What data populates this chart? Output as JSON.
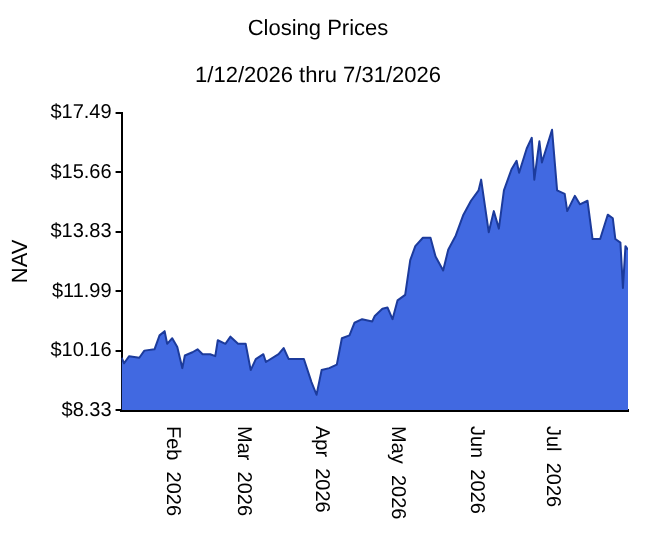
{
  "chart_data": {
    "type": "area",
    "title": "Closing Prices",
    "subtitle": "1/12/2026 thru 7/31/2026",
    "ylabel": "NAV",
    "x": [
      "2026-01-12",
      "2026-01-13",
      "2026-01-15",
      "2026-01-19",
      "2026-01-21",
      "2026-01-25",
      "2026-01-27",
      "2026-01-29",
      "2026-01-30",
      "2026-02-01",
      "2026-02-03",
      "2026-02-05",
      "2026-02-06",
      "2026-02-09",
      "2026-02-11",
      "2026-02-13",
      "2026-02-16",
      "2026-02-18",
      "2026-02-19",
      "2026-02-22",
      "2026-02-24",
      "2026-02-27",
      "2026-03-02",
      "2026-03-04",
      "2026-03-06",
      "2026-03-09",
      "2026-03-10",
      "2026-03-15",
      "2026-03-17",
      "2026-03-19",
      "2026-03-22",
      "2026-03-25",
      "2026-03-28",
      "2026-03-30",
      "2026-04-01",
      "2026-04-04",
      "2026-04-07",
      "2026-04-09",
      "2026-04-12",
      "2026-04-14",
      "2026-04-17",
      "2026-04-21",
      "2026-04-22",
      "2026-04-25",
      "2026-04-27",
      "2026-04-29",
      "2026-05-01",
      "2026-05-04",
      "2026-05-06",
      "2026-05-08",
      "2026-05-11",
      "2026-05-14",
      "2026-05-16",
      "2026-05-19",
      "2026-05-21",
      "2026-05-24",
      "2026-05-27",
      "2026-05-30",
      "2026-06-02",
      "2026-06-03",
      "2026-06-06",
      "2026-06-08",
      "2026-06-10",
      "2026-06-12",
      "2026-06-15",
      "2026-06-17",
      "2026-06-18",
      "2026-06-21",
      "2026-06-23",
      "2026-06-24",
      "2026-06-26",
      "2026-06-27",
      "2026-07-01",
      "2026-07-03",
      "2026-07-06",
      "2026-07-07",
      "2026-07-10",
      "2026-07-12",
      "2026-07-15",
      "2026-07-17",
      "2026-07-20",
      "2026-07-23",
      "2026-07-25",
      "2026-07-26",
      "2026-07-28",
      "2026-07-29",
      "2026-07-30",
      "2026-07-31"
    ],
    "series": [
      {
        "color": "#4169e1",
        "values": [
          9.94,
          9.77,
          9.99,
          9.94,
          10.16,
          10.2,
          10.63,
          10.76,
          10.37,
          10.54,
          10.27,
          9.62,
          10.01,
          10.11,
          10.2,
          10.05,
          10.05,
          9.99,
          10.48,
          10.37,
          10.59,
          10.37,
          10.37,
          9.56,
          9.9,
          10.05,
          9.81,
          10.05,
          10.24,
          9.9,
          9.9,
          9.9,
          9.19,
          8.8,
          9.56,
          9.62,
          9.73,
          10.54,
          10.63,
          11.02,
          11.13,
          11.06,
          11.23,
          11.45,
          11.49,
          11.13,
          11.71,
          11.88,
          12.95,
          13.38,
          13.64,
          13.64,
          13.06,
          12.63,
          13.27,
          13.71,
          14.35,
          14.78,
          15.1,
          15.43,
          13.81,
          14.46,
          13.92,
          15.1,
          15.75,
          16.01,
          15.64,
          16.39,
          16.72,
          15.43,
          16.61,
          15.96,
          16.97,
          15.1,
          14.99,
          14.46,
          14.93,
          14.67,
          14.78,
          13.6,
          13.6,
          14.35,
          14.24,
          13.6,
          13.49,
          12.09,
          13.38,
          13.27
        ]
      }
    ],
    "xlim": [
      "2026-01-12",
      "2026-07-31"
    ],
    "xticks": [
      {
        "value": "2026-02-01",
        "label": "Feb  2026"
      },
      {
        "value": "2026-03-01",
        "label": "Mar  2026"
      },
      {
        "value": "2026-04-01",
        "label": "Apr  2026"
      },
      {
        "value": "2026-05-01",
        "label": "May  2026"
      },
      {
        "value": "2026-06-01",
        "label": "Jun  2026"
      },
      {
        "value": "2026-07-01",
        "label": "Jul  2026"
      }
    ],
    "ylim": [
      8.33,
      17.49
    ],
    "yticks": [
      {
        "value": 8.33,
        "label": "$8.33"
      },
      {
        "value": 10.16,
        "label": "$10.16"
      },
      {
        "value": 11.99,
        "label": "$11.99"
      },
      {
        "value": 13.83,
        "label": "$13.83"
      },
      {
        "value": 15.66,
        "label": "$15.66"
      },
      {
        "value": 17.49,
        "label": "$17.49"
      }
    ],
    "grid": false,
    "legend": false
  }
}
